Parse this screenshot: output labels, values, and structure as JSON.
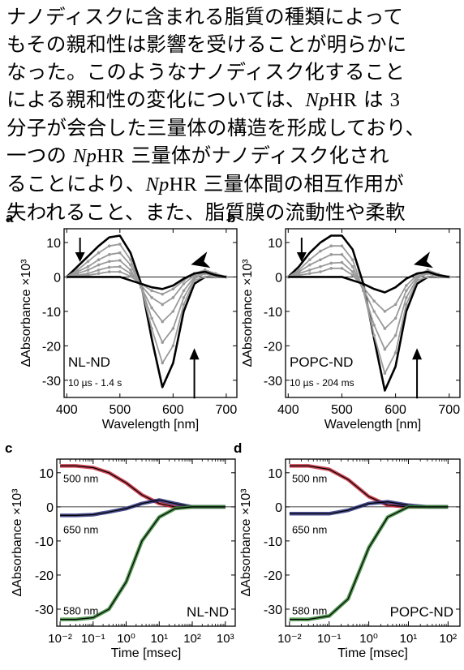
{
  "paragraph": {
    "lines": [
      [
        {
          "t": "ナノディスクに含まれる脂質の種類によって"
        }
      ],
      [
        {
          "t": "もその親和性は影響を受けることが明らかに"
        }
      ],
      [
        {
          "t": "なった。このようなナノディスク化すること"
        }
      ],
      [
        {
          "t": "による親和性の変化については、"
        },
        {
          "t": "Np",
          "s": "it"
        },
        {
          "t": "HR",
          "s": "sf"
        },
        {
          "t": " は "
        },
        {
          "t": "3",
          "s": "sf"
        }
      ],
      [
        {
          "t": "分子が会合した三量体の構造を形成しており、"
        }
      ],
      [
        {
          "t": "一つの "
        },
        {
          "t": "Np",
          "s": "it"
        },
        {
          "t": "HR",
          "s": "sf"
        },
        {
          "t": " 三量体がナノディスク化され"
        }
      ],
      [
        {
          "t": "ることにより、"
        },
        {
          "t": "Np",
          "s": "it"
        },
        {
          "t": "HR",
          "s": "sf"
        },
        {
          "t": " 三量体間の相互作用が"
        }
      ],
      [
        {
          "t": "失われること、また、脂質膜の流動性や柔軟"
        }
      ]
    ]
  },
  "figure": {
    "colors": {
      "dark": "#000000",
      "gray": "#9a9a9a",
      "red": "#c8283a",
      "blue": "#2a2f7a",
      "green": "#3a8a3a"
    },
    "spectra_axes": {
      "xlabel": "Wavelength [nm]",
      "ylabel": "ΔAbsorbance ×10³",
      "xticks": [
        "400",
        "500",
        "600",
        "700"
      ],
      "yticks": [
        "10",
        "0",
        "-10",
        "-20",
        "-30"
      ]
    },
    "kinetics_axes": {
      "xlabel": "Time [msec]",
      "ylabel": "ΔAbsorbance ×10³",
      "xticks": [
        "10⁻²",
        "10⁻¹",
        "10⁰",
        "10¹",
        "10²",
        "10³"
      ],
      "yticks": [
        "10",
        "0",
        "-10",
        "-20",
        "-30"
      ]
    },
    "panels": [
      {
        "letter": "a",
        "label": "NL-ND",
        "range": "10 µs - 1.4 s"
      },
      {
        "letter": "b",
        "label": "POPC-ND",
        "range": "10 µs - 204 ms"
      },
      {
        "letter": "c",
        "label": "NL-ND",
        "traces": [
          "500 nm",
          "650 nm",
          "580 nm"
        ]
      },
      {
        "letter": "d",
        "label": "POPC-ND",
        "traces": [
          "500 nm",
          "650 nm",
          "580 nm"
        ]
      }
    ]
  },
  "chart_data": [
    {
      "type": "line",
      "title": "",
      "xlabel": "Wavelength [nm]",
      "ylabel": "ΔAbsorbance ×10³",
      "xlim": [
        395,
        720
      ],
      "ylim": [
        -35,
        14
      ],
      "x": [
        400,
        420,
        440,
        460,
        480,
        500,
        520,
        540,
        560,
        580,
        600,
        620,
        640,
        660,
        680,
        700
      ],
      "series": [
        {
          "values": [
            0,
            3,
            6,
            9,
            11.5,
            12,
            7,
            -2,
            -18,
            -32,
            -25,
            -10,
            -2,
            0,
            0,
            0
          ]
        },
        {
          "values": [
            0,
            2,
            4.5,
            7,
            9,
            9.5,
            5,
            -3,
            -15,
            -25,
            -20,
            -8,
            -1,
            0,
            0,
            0
          ]
        },
        {
          "values": [
            0,
            1.5,
            3,
            5,
            6.5,
            7,
            3.5,
            -3,
            -12,
            -19,
            -15,
            -6,
            -0.5,
            1,
            0,
            0
          ]
        },
        {
          "values": [
            0,
            1,
            2,
            3.5,
            4.5,
            4.8,
            2,
            -3,
            -9,
            -13,
            -10,
            -4,
            0,
            1.5,
            0.5,
            0
          ]
        },
        {
          "values": [
            0,
            0.5,
            1,
            2,
            2.8,
            3,
            1,
            -2.5,
            -6,
            -8,
            -6,
            -2,
            0.5,
            2,
            0.8,
            0
          ]
        },
        {
          "values": [
            0,
            0.3,
            0.5,
            1,
            1.5,
            1.5,
            0.2,
            -2,
            -4,
            -5,
            -3.5,
            -1,
            1,
            2,
            1,
            0
          ]
        },
        {
          "values": [
            0,
            0,
            0,
            0,
            0,
            0,
            -1,
            -2,
            -3,
            -3.5,
            -2.5,
            -0.5,
            1,
            1.5,
            0.5,
            0
          ]
        }
      ],
      "markers": {
        "arrow_down_at": [
          425,
          10
        ],
        "arrow_up_at": [
          640,
          -32
        ],
        "arrowhead_at": [
          655,
          5
        ]
      }
    },
    {
      "type": "line",
      "title": "",
      "xlabel": "Wavelength [nm]",
      "ylabel": "ΔAbsorbance ×10³",
      "xlim": [
        395,
        720
      ],
      "ylim": [
        -35,
        14
      ],
      "x": [
        400,
        420,
        440,
        460,
        480,
        500,
        520,
        540,
        560,
        580,
        600,
        620,
        640,
        660,
        680,
        700
      ],
      "series": [
        {
          "values": [
            0,
            3,
            7,
            10,
            12,
            12,
            8,
            -2,
            -18,
            -33,
            -26,
            -10,
            -2,
            0,
            0,
            0
          ]
        },
        {
          "values": [
            0,
            2,
            5,
            7.5,
            9,
            9,
            5,
            -4,
            -17,
            -28,
            -22,
            -8,
            -1,
            0,
            0,
            0
          ]
        },
        {
          "values": [
            0,
            1.5,
            3.5,
            5,
            6.5,
            6.5,
            3,
            -4,
            -14,
            -21,
            -17,
            -6,
            -0.5,
            1,
            0,
            0
          ]
        },
        {
          "values": [
            0,
            1,
            2,
            3,
            4,
            4.2,
            1.5,
            -3.5,
            -10,
            -15,
            -12,
            -4,
            0,
            1.5,
            0.5,
            0
          ]
        },
        {
          "values": [
            0,
            0.5,
            1,
            1.5,
            2.5,
            2.5,
            0.5,
            -3,
            -7,
            -10,
            -8,
            -2.5,
            0.5,
            2,
            0.8,
            0
          ]
        },
        {
          "values": [
            0,
            0,
            0,
            0,
            0,
            0,
            -1,
            -2,
            -3.5,
            -4.5,
            -3,
            -0.5,
            1,
            1.5,
            0.5,
            0
          ]
        }
      ],
      "markers": {
        "arrow_down_at": [
          425,
          10
        ],
        "arrow_up_at": [
          640,
          -32
        ],
        "arrowhead_at": [
          655,
          5
        ]
      }
    },
    {
      "type": "line",
      "title": "",
      "xlabel": "Time [msec]",
      "ylabel": "ΔAbsorbance ×10³",
      "xscale": "log",
      "xlim": [
        0.01,
        2000
      ],
      "ylim": [
        -35,
        14
      ],
      "x": [
        0.01,
        0.03,
        0.1,
        0.3,
        1,
        3,
        10,
        30,
        100,
        300,
        1000
      ],
      "series": [
        {
          "name": "500 nm",
          "values": [
            12,
            12,
            11.5,
            10,
            7,
            3.5,
            1,
            0,
            0,
            0,
            0
          ]
        },
        {
          "name": "650 nm",
          "values": [
            -2.5,
            -2.5,
            -2.3,
            -1.5,
            -0.5,
            1,
            2,
            1,
            0,
            0,
            0
          ]
        },
        {
          "name": "580 nm",
          "values": [
            -33,
            -33,
            -32.5,
            -30,
            -22,
            -10,
            -3,
            -0.5,
            0,
            0,
            0
          ]
        }
      ]
    },
    {
      "type": "line",
      "title": "",
      "xlabel": "Time [msec]",
      "ylabel": "ΔAbsorbance ×10³",
      "xscale": "log",
      "xlim": [
        0.01,
        200
      ],
      "ylim": [
        -35,
        14
      ],
      "x": [
        0.01,
        0.03,
        0.1,
        0.3,
        1,
        3,
        10,
        30,
        100
      ],
      "series": [
        {
          "name": "500 nm",
          "values": [
            12,
            12,
            11,
            8,
            3,
            0.5,
            0,
            0,
            0
          ]
        },
        {
          "name": "650 nm",
          "values": [
            -2,
            -2,
            -2,
            -1,
            1,
            1.5,
            0.5,
            0,
            0
          ]
        },
        {
          "name": "580 nm",
          "values": [
            -33,
            -33,
            -32,
            -27,
            -12,
            -3,
            0,
            0,
            0
          ]
        }
      ]
    }
  ]
}
